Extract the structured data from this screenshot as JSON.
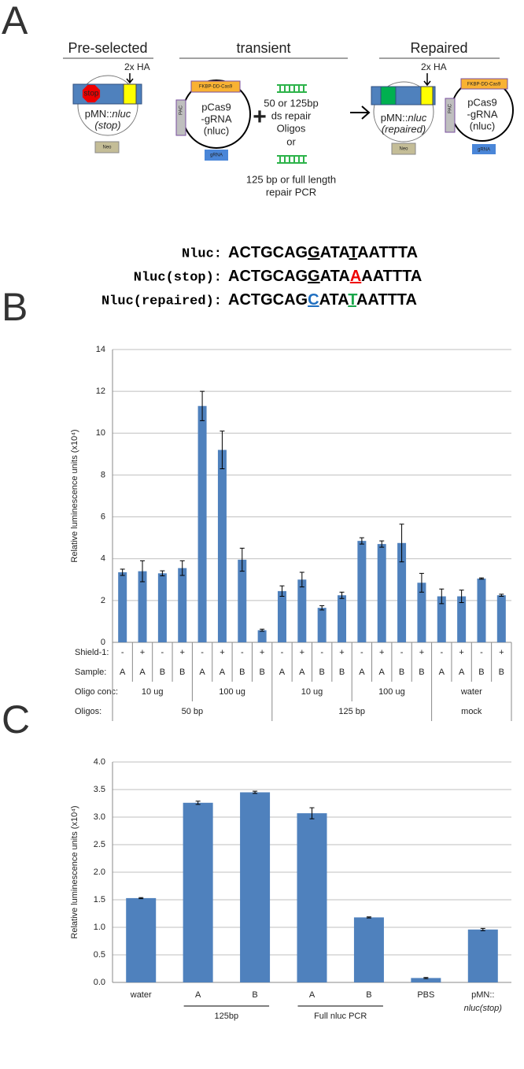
{
  "panel_a": {
    "letter": "A",
    "headers": [
      "Pre-selected",
      "transient",
      "Repaired"
    ],
    "preselected": {
      "tag": "2x HA",
      "stop": "stop",
      "name": {
        "prefix": "pMN::",
        "gene": "nluc",
        "state": "(stop)"
      },
      "marker": "Neo"
    },
    "cas9": {
      "cassette": "FKBP-DD-Cas9",
      "selection": "PAC",
      "name": [
        "pCas9",
        "-gRNA",
        "(nluc)"
      ],
      "guide": "gRNA"
    },
    "plus": "+",
    "repair": [
      "50 or 125bp",
      "ds repair",
      "Oligos",
      "or",
      "125 bp or full length",
      "repair PCR"
    ],
    "repaired": {
      "tag": "2x HA",
      "name": {
        "prefix": "pMN::",
        "gene": "nluc",
        "state": "(repaired)"
      },
      "marker": "Neo"
    },
    "sequences": [
      {
        "label": "Nluc:",
        "parts": [
          "ACTGCAG",
          "G",
          "ATA",
          "T",
          "AATTTA"
        ]
      },
      {
        "label": "Nluc(stop):",
        "parts": [
          "ACTGCAG",
          "G",
          "ATA",
          "A",
          "AATTTA"
        ]
      },
      {
        "label": "Nluc(repaired):",
        "parts": [
          "ACTGCAG",
          "C",
          "ATA",
          "T",
          "AATTTA"
        ]
      }
    ]
  },
  "chart_data": [
    {
      "type": "bar",
      "panel_label": "B",
      "y_label": "Relative luminescence units (x10⁴)",
      "color": "#4f81bd",
      "grid": true,
      "ylim": [
        0,
        14
      ],
      "yticks": [
        0,
        2,
        4,
        6,
        8,
        10,
        12,
        14
      ],
      "values": [
        3.35,
        3.4,
        3.3,
        3.55,
        11.3,
        9.2,
        3.95,
        0.58,
        2.45,
        3.0,
        1.65,
        2.25,
        4.85,
        4.7,
        4.75,
        2.85,
        2.2,
        2.2,
        3.05,
        2.25
      ],
      "errors": [
        0.15,
        0.5,
        0.12,
        0.35,
        0.7,
        0.9,
        0.55,
        0.05,
        0.25,
        0.35,
        0.1,
        0.15,
        0.15,
        0.15,
        0.9,
        0.45,
        0.35,
        0.3,
        0.03,
        0.05
      ],
      "category_rows": [
        {
          "label": "Shield-1:",
          "values": [
            "-",
            "+",
            "-",
            "+",
            "-",
            "+",
            "-",
            "+",
            "-",
            "+",
            "-",
            "+",
            "-",
            "+",
            "-",
            "+",
            "-",
            "+",
            "-",
            "+"
          ]
        },
        {
          "label": "Sample:",
          "values": [
            "A",
            "A",
            "B",
            "B",
            "A",
            "A",
            "B",
            "B",
            "A",
            "A",
            "B",
            "B",
            "A",
            "A",
            "B",
            "B",
            "A",
            "A",
            "B",
            "B"
          ]
        },
        {
          "label": "Oligo conc:",
          "values": [
            "10 ug",
            null,
            null,
            null,
            "100 ug",
            null,
            null,
            null,
            "10 ug",
            null,
            null,
            null,
            "100 ug",
            null,
            null,
            null,
            "water",
            null,
            null,
            null
          ]
        },
        {
          "label": "Oligos:",
          "values": [
            "50 bp",
            null,
            null,
            null,
            null,
            null,
            null,
            null,
            "125 bp",
            null,
            null,
            null,
            null,
            null,
            null,
            null,
            "mock",
            null,
            null,
            null
          ]
        }
      ]
    },
    {
      "type": "bar",
      "panel_label": "C",
      "y_label": "Relative luminescence units (x10⁴)",
      "color": "#4f81bd",
      "grid": true,
      "ylim": [
        0,
        4
      ],
      "yticks": [
        {
          "value": 0,
          "label": "0.0"
        },
        {
          "value": 0.5,
          "label": "0.5"
        },
        {
          "value": 1,
          "label": "1.0"
        },
        {
          "value": 1.5,
          "label": "1.5"
        },
        {
          "value": 2,
          "label": "2.0"
        },
        {
          "value": 2.5,
          "label": "2.5"
        },
        {
          "value": 3,
          "label": "3.0"
        },
        {
          "value": 3.5,
          "label": "3.5"
        },
        {
          "value": 4,
          "label": "4.0"
        }
      ],
      "categories": [
        "water",
        "A",
        "B",
        "A",
        "B",
        "PBS",
        "pMN::"
      ],
      "category_sublabels": [
        null,
        null,
        null,
        null,
        null,
        null,
        "nluc(stop)"
      ],
      "groups": [
        {
          "label": "125bp",
          "members": [
            1,
            2
          ]
        },
        {
          "label": "Full nluc PCR",
          "members": [
            3,
            4
          ]
        }
      ],
      "values": [
        1.53,
        3.26,
        3.45,
        3.07,
        1.18,
        0.08,
        0.96
      ],
      "errors": [
        0.01,
        0.03,
        0.02,
        0.1,
        0.01,
        0.01,
        0.02
      ]
    }
  ]
}
